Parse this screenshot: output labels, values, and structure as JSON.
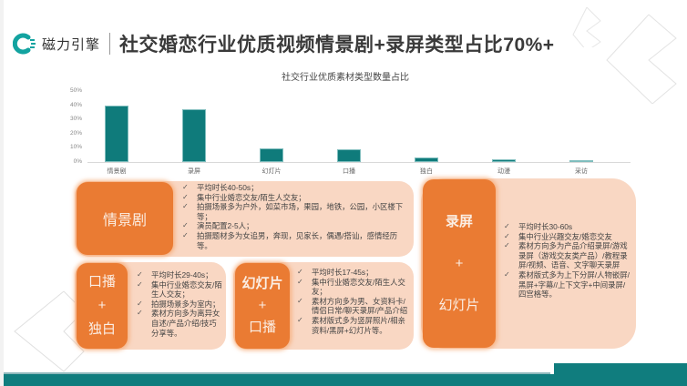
{
  "header": {
    "logo_text": "磁力引擎",
    "title": "社交婚恋行业优质视频情景剧+录屏类型占比70%+"
  },
  "colors": {
    "teal": "#0f7b7b",
    "orange": "#ea7b33",
    "peach": "#f9d7c3",
    "title_text": "#3a3a3a"
  },
  "chart_data": {
    "type": "bar",
    "title": "社交行业优质素材类型数量占比",
    "categories": [
      "情景剧",
      "录屏",
      "幻灯片",
      "口播",
      "独白",
      "动漫",
      "采访"
    ],
    "values": [
      39.5,
      37,
      9.5,
      9,
      3,
      2,
      1.5
    ],
    "unit": "%",
    "xlabel": "",
    "ylabel": "",
    "ylim": [
      0,
      50
    ],
    "yticks": [
      "0%",
      "10%",
      "20%",
      "30%",
      "40%",
      "50%"
    ],
    "grid": false,
    "legend": "none",
    "color": "#0f7b7b"
  },
  "cards": [
    {
      "tag": [
        "情景剧"
      ],
      "points": [
        "平均时长40-50s；",
        "集中行业婚恋交友/陌生人交友；",
        "拍摄场景多为户外，如菜市场，果园，地铁，公园，小区楼下等；",
        "演员配置2-5人；",
        "拍摄题材多为女追男，奔现，见家长，偶遇/搭讪，感情经历等。"
      ]
    },
    {
      "tag": [
        "口播",
        "+",
        "独白"
      ],
      "points": [
        "平均时长29-40s；",
        "集中行业婚恋交友/陌生人交友；",
        "拍摄场景多为室内；",
        "素材方向多为离异女自述/产品介绍/技巧分享等。"
      ]
    },
    {
      "tag": [
        "幻灯片",
        "+",
        "口播"
      ],
      "points": [
        "平均时长17-45s；",
        "集中行业婚恋交友/陌生人交友；",
        "素材方向多为男、女资料卡/情侣日常/聊天录屏/产品介绍",
        "素材版式多为竖屏照片/相亲资料/黑屏+幻灯片等。"
      ]
    },
    {
      "tag": [
        "录屏",
        "+",
        "幻灯片"
      ],
      "points": [
        "平均时长30-60s",
        "集中行业兴趣交友/婚恋交友",
        "素材方向多为产品介绍录屏/游戏录屏（游戏交友类产品）/教程录屏/视频、语音、文字聊天录屏",
        "素材版式多为上下分屏/人物嵌屏/黑屏+字幕//上下文字+中间录屏/四宫格等。"
      ]
    }
  ]
}
